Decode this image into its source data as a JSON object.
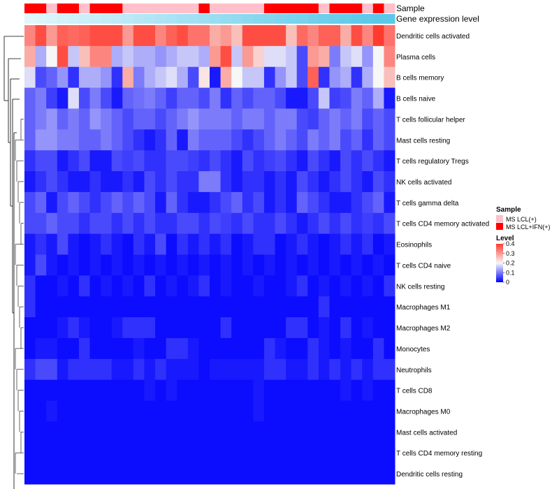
{
  "chart_data": {
    "type": "heatmap",
    "title": "",
    "track_labels": {
      "sample": "Sample",
      "gene_expression": "Gene expression level"
    },
    "rows": [
      "Dendritic cells activated",
      "Plasma cells",
      "B cells memory",
      "B cells naive",
      "T cells follicular helper",
      "Mast cells resting",
      "T cells regulatory  Tregs",
      "NK cells activated",
      "T cells gamma delta",
      "T cells CD4 memory activated",
      "Eosinophils",
      "T cells CD4 naive",
      "NK cells resting",
      "Macrophages M1",
      "Macrophages M2",
      "Monocytes",
      "Neutrophils",
      "T cells CD8",
      "Macrophages M0",
      "Mast cells activated",
      "T cells CD4 memory resting",
      "Dendritic cells resting"
    ],
    "sample_group_colors": {
      "MS LCL(+)": "#ffc0cb",
      "MS LCL+IFN(+)": "#ff0000"
    },
    "sample_annotation": [
      "MS LCL+IFN(+)",
      "MS LCL+IFN(+)",
      "MS LCL(+)",
      "MS LCL+IFN(+)",
      "MS LCL+IFN(+)",
      "MS LCL(+)",
      "MS LCL+IFN(+)",
      "MS LCL+IFN(+)",
      "MS LCL+IFN(+)",
      "MS LCL(+)",
      "MS LCL(+)",
      "MS LCL(+)",
      "MS LCL(+)",
      "MS LCL(+)",
      "MS LCL(+)",
      "MS LCL(+)",
      "MS LCL+IFN(+)",
      "MS LCL(+)",
      "MS LCL(+)",
      "MS LCL(+)",
      "MS LCL(+)",
      "MS LCL(+)",
      "MS LCL+IFN(+)",
      "MS LCL+IFN(+)",
      "MS LCL+IFN(+)",
      "MS LCL+IFN(+)",
      "MS LCL+IFN(+)",
      "MS LCL(+)",
      "MS LCL+IFN(+)",
      "MS LCL+IFN(+)",
      "MS LCL+IFN(+)",
      "MS LCL(+)",
      "MS LCL+IFN(+)",
      "MS LCL(+)"
    ],
    "gene_expression_level": [
      0.05,
      0.08,
      0.11,
      0.14,
      0.17,
      0.2,
      0.23,
      0.26,
      0.29,
      0.32,
      0.35,
      0.38,
      0.41,
      0.44,
      0.47,
      0.5,
      0.53,
      0.56,
      0.59,
      0.62,
      0.65,
      0.68,
      0.71,
      0.74,
      0.77,
      0.8,
      0.83,
      0.86,
      0.89,
      0.92,
      0.95,
      0.98,
      1.0,
      1.0
    ],
    "gene_expression_colors": {
      "low": "#e8f8fc",
      "high": "#5bc8e8"
    },
    "values": [
      [
        0.32,
        0.38,
        0.3,
        0.36,
        0.35,
        0.36,
        0.38,
        0.38,
        0.38,
        0.3,
        0.38,
        0.38,
        0.32,
        0.36,
        0.38,
        0.34,
        0.34,
        0.28,
        0.3,
        0.26,
        0.38,
        0.38,
        0.38,
        0.38,
        0.26,
        0.35,
        0.32,
        0.36,
        0.36,
        0.28,
        0.38,
        0.32,
        0.4,
        0.34
      ],
      [
        0.28,
        0.14,
        0.2,
        0.38,
        0.16,
        0.26,
        0.32,
        0.32,
        0.14,
        0.16,
        0.14,
        0.14,
        0.12,
        0.14,
        0.16,
        0.16,
        0.14,
        0.3,
        0.38,
        0.16,
        0.3,
        0.24,
        0.18,
        0.18,
        0.16,
        0.06,
        0.3,
        0.28,
        0.1,
        0.16,
        0.18,
        0.12,
        0.2,
        0.32
      ],
      [
        0.18,
        0.06,
        0.08,
        0.12,
        0.04,
        0.14,
        0.14,
        0.12,
        0.04,
        0.28,
        0.1,
        0.14,
        0.16,
        0.18,
        0.14,
        0.06,
        0.22,
        0.02,
        0.28,
        0.2,
        0.16,
        0.16,
        0.04,
        0.12,
        0.16,
        0.06,
        0.36,
        0.04,
        0.12,
        0.14,
        0.04,
        0.14,
        0.2,
        0.26
      ],
      [
        0.08,
        0.1,
        0.05,
        0.02,
        0.18,
        0.06,
        0.1,
        0.06,
        0.02,
        0.08,
        0.09,
        0.1,
        0.08,
        0.05,
        0.08,
        0.08,
        0.06,
        0.1,
        0.04,
        0.08,
        0.06,
        0.08,
        0.08,
        0.06,
        0.02,
        0.02,
        0.06,
        0.16,
        0.05,
        0.06,
        0.1,
        0.08,
        0.14,
        0.02
      ],
      [
        0.08,
        0.1,
        0.12,
        0.08,
        0.1,
        0.08,
        0.12,
        0.1,
        0.08,
        0.06,
        0.08,
        0.08,
        0.06,
        0.08,
        0.1,
        0.12,
        0.1,
        0.1,
        0.1,
        0.08,
        0.1,
        0.1,
        0.08,
        0.1,
        0.1,
        0.06,
        0.05,
        0.08,
        0.1,
        0.08,
        0.1,
        0.06,
        0.08,
        0.06
      ],
      [
        0.08,
        0.12,
        0.12,
        0.1,
        0.1,
        0.08,
        0.08,
        0.1,
        0.08,
        0.06,
        0.04,
        0.02,
        0.04,
        0.08,
        0.02,
        0.1,
        0.08,
        0.08,
        0.08,
        0.06,
        0.04,
        0.06,
        0.08,
        0.1,
        0.08,
        0.06,
        0.1,
        0.08,
        0.1,
        0.06,
        0.08,
        0.04,
        0.08,
        0.06
      ],
      [
        0.04,
        0.06,
        0.06,
        0.02,
        0.04,
        0.06,
        0.02,
        0.02,
        0.06,
        0.05,
        0.06,
        0.04,
        0.04,
        0.06,
        0.06,
        0.05,
        0.04,
        0.06,
        0.04,
        0.02,
        0.06,
        0.04,
        0.05,
        0.06,
        0.04,
        0.02,
        0.06,
        0.04,
        0.02,
        0.06,
        0.04,
        0.06,
        0.04,
        0.02
      ],
      [
        0.02,
        0.04,
        0.06,
        0.04,
        0.02,
        0.02,
        0.04,
        0.02,
        0.02,
        0.04,
        0.02,
        0.06,
        0.04,
        0.06,
        0.04,
        0.04,
        0.1,
        0.1,
        0.04,
        0.02,
        0.04,
        0.04,
        0.02,
        0.04,
        0.02,
        0.06,
        0.04,
        0.02,
        0.04,
        0.06,
        0.04,
        0.02,
        0.06,
        0.04
      ],
      [
        0.06,
        0.08,
        0.02,
        0.06,
        0.08,
        0.06,
        0.04,
        0.06,
        0.08,
        0.06,
        0.08,
        0.06,
        0.02,
        0.08,
        0.04,
        0.02,
        0.02,
        0.04,
        0.06,
        0.08,
        0.04,
        0.06,
        0.02,
        0.04,
        0.02,
        0.08,
        0.06,
        0.04,
        0.02,
        0.02,
        0.04,
        0.06,
        0.08,
        0.02
      ],
      [
        0.06,
        0.06,
        0.08,
        0.06,
        0.06,
        0.04,
        0.06,
        0.06,
        0.04,
        0.06,
        0.04,
        0.06,
        0.04,
        0.04,
        0.06,
        0.06,
        0.04,
        0.06,
        0.05,
        0.04,
        0.06,
        0.04,
        0.04,
        0.06,
        0.04,
        0.02,
        0.04,
        0.06,
        0.04,
        0.06,
        0.04,
        0.05,
        0.04,
        0.06
      ],
      [
        0.02,
        0.04,
        0.02,
        0.06,
        0.02,
        0.01,
        0.02,
        0.04,
        0.02,
        0.01,
        0.04,
        0.02,
        0.06,
        0.01,
        0.04,
        0.02,
        0.04,
        0.02,
        0.04,
        0.01,
        0.02,
        0.04,
        0.04,
        0.01,
        0.02,
        0.04,
        0.02,
        0.01,
        0.02,
        0.04,
        0.02,
        0.04,
        0.01,
        0.02
      ],
      [
        0.02,
        0.06,
        0.02,
        0.01,
        0.02,
        0.01,
        0.02,
        0.01,
        0.02,
        0.01,
        0.02,
        0.01,
        0.02,
        0.01,
        0.02,
        0.01,
        0.02,
        0.01,
        0.02,
        0.01,
        0.02,
        0.01,
        0.02,
        0.01,
        0.02,
        0.01,
        0.02,
        0.01,
        0.02,
        0.01,
        0.02,
        0.01,
        0.02,
        0.01
      ],
      [
        0.04,
        0.01,
        0.01,
        0.02,
        0.01,
        0.04,
        0.01,
        0.02,
        0.01,
        0.02,
        0.01,
        0.04,
        0.01,
        0.02,
        0.01,
        0.02,
        0.04,
        0.01,
        0.02,
        0.01,
        0.01,
        0.02,
        0.01,
        0.01,
        0.02,
        0.04,
        0.01,
        0.02,
        0.01,
        0.02,
        0.01,
        0.02,
        0.01,
        0.04
      ],
      [
        0.04,
        0.01,
        0.01,
        0.01,
        0.01,
        0.01,
        0.01,
        0.01,
        0.01,
        0.01,
        0.01,
        0.01,
        0.01,
        0.01,
        0.01,
        0.01,
        0.01,
        0.01,
        0.01,
        0.01,
        0.01,
        0.01,
        0.01,
        0.01,
        0.01,
        0.01,
        0.01,
        0.04,
        0.01,
        0.01,
        0.01,
        0.01,
        0.01,
        0.01
      ],
      [
        0.01,
        0.01,
        0.01,
        0.02,
        0.04,
        0.02,
        0.01,
        0.01,
        0.02,
        0.04,
        0.04,
        0.04,
        0.01,
        0.01,
        0.01,
        0.01,
        0.01,
        0.01,
        0.04,
        0.01,
        0.01,
        0.01,
        0.01,
        0.01,
        0.04,
        0.04,
        0.01,
        0.02,
        0.01,
        0.04,
        0.01,
        0.02,
        0.01,
        0.01
      ],
      [
        0.01,
        0.02,
        0.02,
        0.01,
        0.01,
        0.04,
        0.01,
        0.01,
        0.01,
        0.01,
        0.02,
        0.01,
        0.01,
        0.04,
        0.04,
        0.02,
        0.01,
        0.01,
        0.01,
        0.01,
        0.01,
        0.01,
        0.04,
        0.02,
        0.01,
        0.01,
        0.04,
        0.02,
        0.01,
        0.02,
        0.01,
        0.01,
        0.04,
        0.01
      ],
      [
        0.04,
        0.06,
        0.06,
        0.02,
        0.04,
        0.04,
        0.04,
        0.04,
        0.02,
        0.02,
        0.04,
        0.02,
        0.04,
        0.02,
        0.02,
        0.02,
        0.01,
        0.02,
        0.02,
        0.02,
        0.02,
        0.02,
        0.04,
        0.04,
        0.02,
        0.02,
        0.04,
        0.02,
        0.04,
        0.02,
        0.04,
        0.02,
        0.04,
        0.04
      ],
      [
        0.01,
        0.01,
        0.01,
        0.01,
        0.01,
        0.01,
        0.01,
        0.01,
        0.01,
        0.01,
        0.01,
        0.02,
        0.01,
        0.02,
        0.01,
        0.01,
        0.01,
        0.01,
        0.01,
        0.01,
        0.01,
        0.02,
        0.01,
        0.01,
        0.01,
        0.01,
        0.01,
        0.01,
        0.01,
        0.02,
        0.01,
        0.02,
        0.01,
        0.01
      ],
      [
        0.01,
        0.01,
        0.02,
        0.01,
        0.01,
        0.01,
        0.01,
        0.01,
        0.01,
        0.01,
        0.01,
        0.01,
        0.01,
        0.01,
        0.01,
        0.01,
        0.01,
        0.01,
        0.01,
        0.01,
        0.01,
        0.02,
        0.01,
        0.01,
        0.01,
        0.01,
        0.01,
        0.01,
        0.01,
        0.01,
        0.01,
        0.01,
        0.01,
        0.01
      ],
      [
        0.01,
        0.01,
        0.01,
        0.01,
        0.01,
        0.01,
        0.01,
        0.01,
        0.01,
        0.01,
        0.01,
        0.01,
        0.01,
        0.01,
        0.01,
        0.01,
        0.01,
        0.01,
        0.01,
        0.01,
        0.01,
        0.01,
        0.01,
        0.01,
        0.01,
        0.01,
        0.01,
        0.01,
        0.01,
        0.01,
        0.01,
        0.01,
        0.01,
        0.01
      ],
      [
        0.01,
        0.01,
        0.01,
        0.01,
        0.01,
        0.01,
        0.01,
        0.01,
        0.01,
        0.01,
        0.01,
        0.01,
        0.01,
        0.01,
        0.01,
        0.01,
        0.01,
        0.01,
        0.01,
        0.01,
        0.01,
        0.01,
        0.01,
        0.01,
        0.01,
        0.01,
        0.01,
        0.01,
        0.01,
        0.01,
        0.01,
        0.01,
        0.01,
        0.01
      ],
      [
        0.01,
        0.01,
        0.01,
        0.01,
        0.01,
        0.01,
        0.01,
        0.01,
        0.01,
        0.01,
        0.01,
        0.01,
        0.01,
        0.01,
        0.01,
        0.01,
        0.01,
        0.01,
        0.01,
        0.01,
        0.01,
        0.01,
        0.01,
        0.01,
        0.01,
        0.01,
        0.01,
        0.01,
        0.01,
        0.01,
        0.01,
        0.01,
        0.01,
        0.01
      ]
    ],
    "color_scale": {
      "min": 0,
      "mid": 0.2,
      "max": 0.4,
      "low_color": "#0000ff",
      "mid_color": "#f7f7f7",
      "high_color": "#ff3b2f"
    },
    "legend": {
      "sample_title": "Sample",
      "sample_entries": [
        "MS LCL(+)",
        "MS LCL+IFN(+)"
      ],
      "level_title": "Level",
      "level_ticks": [
        "0.4",
        "0.3",
        "0.2",
        "0.1",
        "0"
      ],
      "position": "right"
    },
    "row_dendrogram": "left",
    "grid": false
  }
}
